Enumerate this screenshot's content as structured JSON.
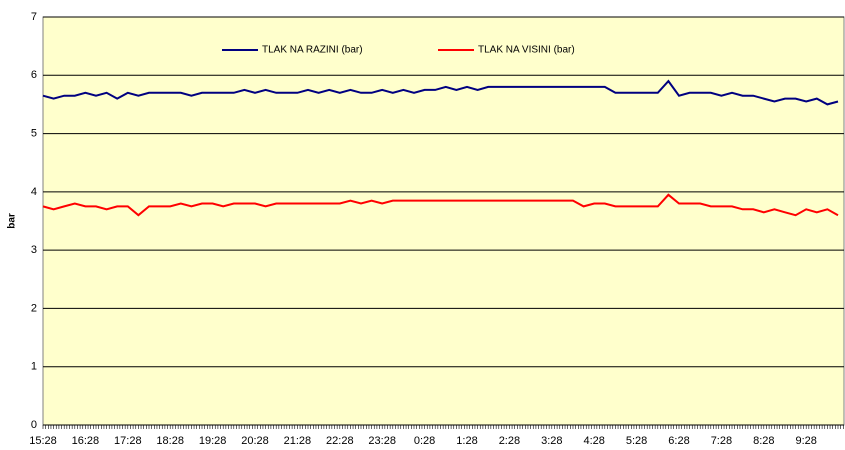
{
  "chart_data": {
    "type": "line",
    "y_label": "bar",
    "categories": [
      "15:28",
      null,
      null,
      null,
      "16:28",
      null,
      null,
      null,
      "17:28",
      null,
      null,
      null,
      "18:28",
      null,
      null,
      null,
      "19:28",
      null,
      null,
      null,
      "20:28",
      null,
      null,
      null,
      "21:28",
      null,
      null,
      null,
      "22:28",
      null,
      null,
      null,
      "23:28",
      null,
      null,
      null,
      "0:28",
      null,
      null,
      null,
      "1:28",
      null,
      null,
      null,
      "2:28",
      null,
      null,
      null,
      "3:28",
      null,
      null,
      null,
      "4:28",
      null,
      null,
      null,
      "5:28",
      null,
      null,
      null,
      "6:28",
      null,
      null,
      null,
      "7:28",
      null,
      null,
      null,
      "8:28",
      null,
      null,
      null,
      "9:28",
      null,
      null,
      null
    ],
    "series": [
      {
        "name": "TLAK NA RAZINI (bar)",
        "color": "#000080",
        "values": [
          5.65,
          5.6,
          5.65,
          5.65,
          5.7,
          5.65,
          5.7,
          5.6,
          5.7,
          5.65,
          5.7,
          5.7,
          5.7,
          5.7,
          5.65,
          5.7,
          5.7,
          5.7,
          5.7,
          5.75,
          5.7,
          5.75,
          5.7,
          5.7,
          5.7,
          5.75,
          5.7,
          5.75,
          5.7,
          5.75,
          5.7,
          5.7,
          5.75,
          5.7,
          5.75,
          5.7,
          5.75,
          5.75,
          5.8,
          5.75,
          5.8,
          5.75,
          5.8,
          5.8,
          5.8,
          5.8,
          5.8,
          5.8,
          5.8,
          5.8,
          5.8,
          5.8,
          5.8,
          5.8,
          5.7,
          5.7,
          5.7,
          5.7,
          5.7,
          5.9,
          5.65,
          5.7,
          5.7,
          5.7,
          5.65,
          5.7,
          5.65,
          5.65,
          5.6,
          5.55,
          5.6,
          5.6,
          5.55,
          5.6,
          5.5,
          5.55
        ]
      },
      {
        "name": "TLAK NA VISINI  (bar)",
        "color": "#ff0000",
        "values": [
          3.75,
          3.7,
          3.75,
          3.8,
          3.75,
          3.75,
          3.7,
          3.75,
          3.75,
          3.6,
          3.75,
          3.75,
          3.75,
          3.8,
          3.75,
          3.8,
          3.8,
          3.75,
          3.8,
          3.8,
          3.8,
          3.75,
          3.8,
          3.8,
          3.8,
          3.8,
          3.8,
          3.8,
          3.8,
          3.85,
          3.8,
          3.85,
          3.8,
          3.85,
          3.85,
          3.85,
          3.85,
          3.85,
          3.85,
          3.85,
          3.85,
          3.85,
          3.85,
          3.85,
          3.85,
          3.85,
          3.85,
          3.85,
          3.85,
          3.85,
          3.85,
          3.75,
          3.8,
          3.8,
          3.75,
          3.75,
          3.75,
          3.75,
          3.75,
          3.95,
          3.8,
          3.8,
          3.8,
          3.75,
          3.75,
          3.75,
          3.7,
          3.7,
          3.65,
          3.7,
          3.65,
          3.6,
          3.7,
          3.65,
          3.7,
          3.6
        ]
      }
    ],
    "ylim": [
      0,
      7
    ],
    "yticks": [
      0,
      1,
      2,
      3,
      4,
      5,
      6,
      7
    ],
    "grid": true,
    "legend": "top"
  }
}
